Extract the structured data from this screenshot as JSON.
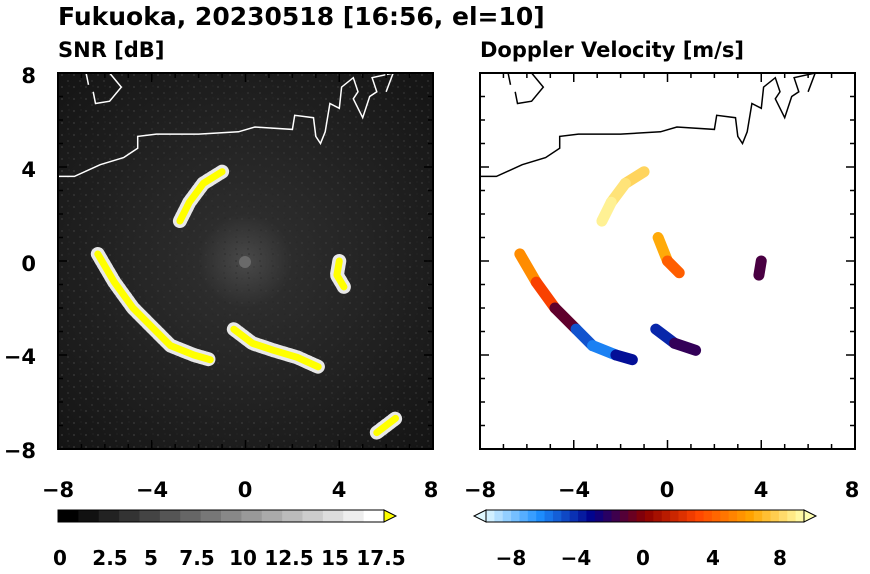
{
  "figure": {
    "title": "Fukuoka, 20230518 [16:56, el=10]"
  },
  "chart_data": [
    {
      "type": "heatmap",
      "title": "SNR [dB]",
      "xlim": [
        -8,
        8
      ],
      "ylim": [
        -8,
        8
      ],
      "x_ticks": [
        "−8",
        "−4",
        "0",
        "4",
        "8"
      ],
      "y_ticks": [
        "8",
        "4",
        "0",
        "−4",
        "−8"
      ],
      "colorbar": {
        "range": [
          0,
          18.5
        ],
        "extend": "max",
        "tick_labels": [
          "0",
          "2.5",
          "5",
          "7.5",
          "10",
          "12.5",
          "15",
          "17.5"
        ],
        "colors": [
          "#000000",
          "#ffffff",
          "#ffff00"
        ]
      },
      "echo_bands": [
        {
          "name": "north-arc",
          "points": [
            [
              -1.0,
              3.8
            ],
            [
              -1.8,
              3.3
            ],
            [
              -2.4,
              2.5
            ],
            [
              -2.8,
              1.7
            ]
          ]
        },
        {
          "name": "southwest-arc",
          "points": [
            [
              -6.3,
              0.3
            ],
            [
              -5.6,
              -0.9
            ],
            [
              -4.8,
              -2.0
            ],
            [
              -3.9,
              -2.9
            ],
            [
              -3.2,
              -3.6
            ],
            [
              -2.2,
              -4.0
            ],
            [
              -1.5,
              -4.2
            ]
          ]
        },
        {
          "name": "south-arc",
          "points": [
            [
              -0.5,
              -2.9
            ],
            [
              0.3,
              -3.5
            ],
            [
              1.2,
              -3.8
            ],
            [
              2.2,
              -4.1
            ],
            [
              3.1,
              -4.5
            ]
          ]
        },
        {
          "name": "east-echo",
          "points": [
            [
              4.0,
              0.0
            ],
            [
              3.9,
              -0.6
            ],
            [
              4.2,
              -1.1
            ]
          ]
        },
        {
          "name": "southeast-corner",
          "points": [
            [
              5.6,
              -7.3
            ],
            [
              6.4,
              -6.7
            ]
          ]
        }
      ]
    },
    {
      "type": "heatmap",
      "title": "Doppler Velocity [m/s]",
      "xlim": [
        -8,
        8
      ],
      "ylim": [
        -8,
        8
      ],
      "x_ticks": [
        "−8",
        "−4",
        "0",
        "4",
        "8"
      ],
      "y_ticks": [
        "8",
        "4",
        "0",
        "−4",
        "−8"
      ],
      "colorbar": {
        "range": [
          -9.5,
          9.5
        ],
        "extend": "both",
        "tick_labels": [
          "−8",
          "−4",
          "0",
          "4",
          "8"
        ],
        "colors": [
          "#e0f8ff",
          "#1e90ff",
          "#00008b",
          "#8b0000",
          "#ff4500",
          "#ffa500",
          "#ffffb0"
        ]
      },
      "echo_bands": [
        {
          "name": "southwest-arc",
          "points": [
            [
              -6.3,
              0.3
            ],
            [
              -5.6,
              -0.9
            ],
            [
              -4.8,
              -2.0
            ],
            [
              -3.9,
              -2.9
            ],
            [
              -3.2,
              -3.6
            ],
            [
              -2.2,
              -4.0
            ],
            [
              -1.5,
              -4.2
            ]
          ],
          "velocities": [
            6,
            5,
            1,
            -3,
            -7,
            -5,
            -2
          ]
        },
        {
          "name": "south-arc",
          "points": [
            [
              -0.5,
              -2.9
            ],
            [
              0.3,
              -3.5
            ],
            [
              1.2,
              -3.8
            ]
          ],
          "velocities": [
            -5,
            -3,
            -1
          ]
        },
        {
          "name": "north-arc",
          "points": [
            [
              -1.0,
              3.8
            ],
            [
              -1.8,
              3.3
            ],
            [
              -2.4,
              2.5
            ],
            [
              -2.8,
              1.7
            ]
          ],
          "velocities": [
            8,
            8,
            9,
            9
          ]
        },
        {
          "name": "center-clutter",
          "points": [
            [
              -0.4,
              1.0
            ],
            [
              0.0,
              0.0
            ],
            [
              0.5,
              -0.5
            ]
          ],
          "velocities": [
            7,
            6,
            2
          ]
        },
        {
          "name": "east-echo",
          "points": [
            [
              4.0,
              0.0
            ],
            [
              3.9,
              -0.6
            ]
          ],
          "velocities": [
            -2,
            -1
          ]
        }
      ]
    }
  ],
  "map_overlay": {
    "coastline": [
      [
        -8.0,
        3.6
      ],
      [
        -7.3,
        3.6
      ],
      [
        -6.2,
        4.1
      ],
      [
        -5.2,
        4.4
      ],
      [
        -4.6,
        4.8
      ],
      [
        -4.6,
        5.3
      ],
      [
        -3.8,
        5.4
      ],
      [
        -2.0,
        5.4
      ],
      [
        -0.3,
        5.5
      ],
      [
        0.4,
        5.7
      ],
      [
        2.0,
        5.6
      ],
      [
        2.1,
        6.2
      ],
      [
        2.9,
        6.1
      ],
      [
        3.0,
        5.3
      ],
      [
        3.2,
        5.0
      ],
      [
        3.4,
        5.5
      ],
      [
        3.6,
        6.7
      ],
      [
        4.0,
        6.5
      ],
      [
        4.1,
        7.4
      ],
      [
        4.6,
        7.8
      ],
      [
        4.8,
        7.2
      ],
      [
        4.6,
        6.9
      ],
      [
        5.0,
        6.1
      ],
      [
        5.3,
        7.0
      ],
      [
        5.6,
        7.2
      ],
      [
        5.4,
        7.8
      ],
      [
        6.3,
        8.0
      ],
      [
        6.0,
        7.2
      ]
    ],
    "island": [
      [
        -6.7,
        7.5
      ],
      [
        -6.8,
        8.0
      ],
      [
        -5.8,
        8.0
      ],
      [
        -5.3,
        7.4
      ],
      [
        -5.8,
        6.8
      ],
      [
        -6.4,
        6.7
      ],
      [
        -6.5,
        7.2
      ]
    ]
  }
}
